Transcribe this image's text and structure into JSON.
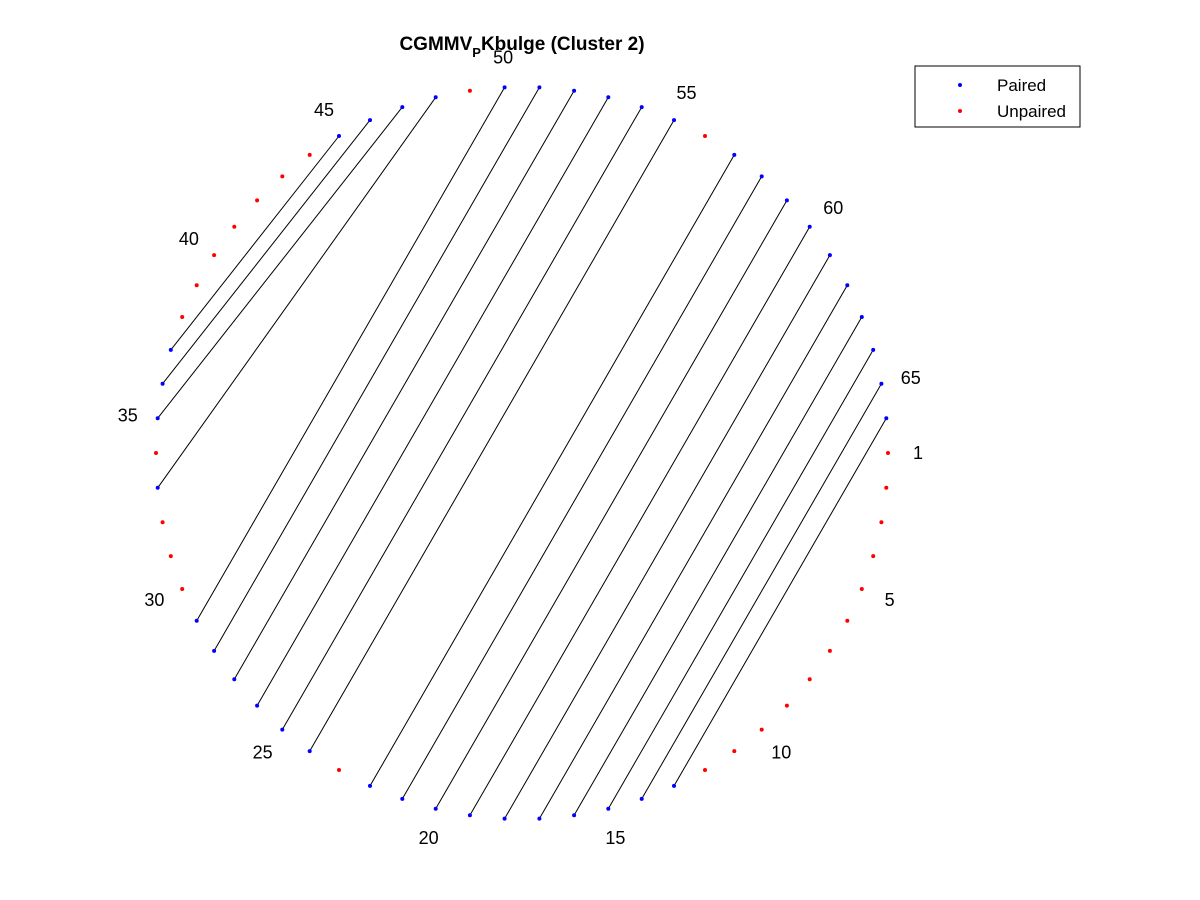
{
  "chart_data": {
    "type": "scatter",
    "title": {
      "prefix": "CGMMV",
      "subscript": "P",
      "suffix": "Kbulge (Cluster 2)"
    },
    "n_positions": 66,
    "index_labels": [
      "1",
      "5",
      "10",
      "15",
      "20",
      "25",
      "30",
      "35",
      "40",
      "45",
      "50",
      "55",
      "60",
      "65"
    ],
    "series": [
      {
        "name": "Paired",
        "color": "#0000ff",
        "positions": [
          0,
          1,
          2,
          3,
          4,
          5,
          6,
          7,
          8,
          9,
          10,
          11,
          12,
          13,
          14,
          15,
          16,
          17,
          18,
          19,
          20,
          21,
          22,
          23,
          24,
          25,
          26,
          27,
          28,
          29,
          30,
          31,
          32,
          33,
          34,
          35,
          36,
          37,
          38,
          39
        ]
      },
      {
        "name": "Unpaired",
        "color": "#ff0000",
        "positions": [
          1,
          2,
          3,
          4,
          5,
          6,
          7,
          8,
          9,
          10,
          11,
          12,
          13,
          14,
          15,
          16,
          17,
          18,
          19,
          20,
          21,
          22,
          23,
          24,
          25,
          26,
          27,
          28,
          29
        ]
      }
    ],
    "pairs": [
      [
        14,
        54
      ],
      [
        15,
        55
      ],
      [
        16,
        56
      ],
      [
        17,
        57
      ],
      [
        18,
        58
      ],
      [
        19,
        59
      ],
      [
        20,
        60
      ],
      [
        21,
        61
      ],
      [
        22,
        62
      ],
      [
        23,
        63
      ],
      [
        24,
        64
      ],
      [
        25,
        65
      ],
      [
        26,
        66
      ],
      [
        27,
        67
      ],
      [
        28,
        68
      ],
      [
        29,
        69
      ],
      [
        30,
        70
      ],
      [
        31,
        71
      ],
      [
        32,
        72
      ],
      [
        33,
        73
      ]
    ],
    "legend": {
      "position": "top-right",
      "entries": [
        "Paired",
        "Unpaired"
      ]
    },
    "grid": false,
    "axes_visible": false
  }
}
